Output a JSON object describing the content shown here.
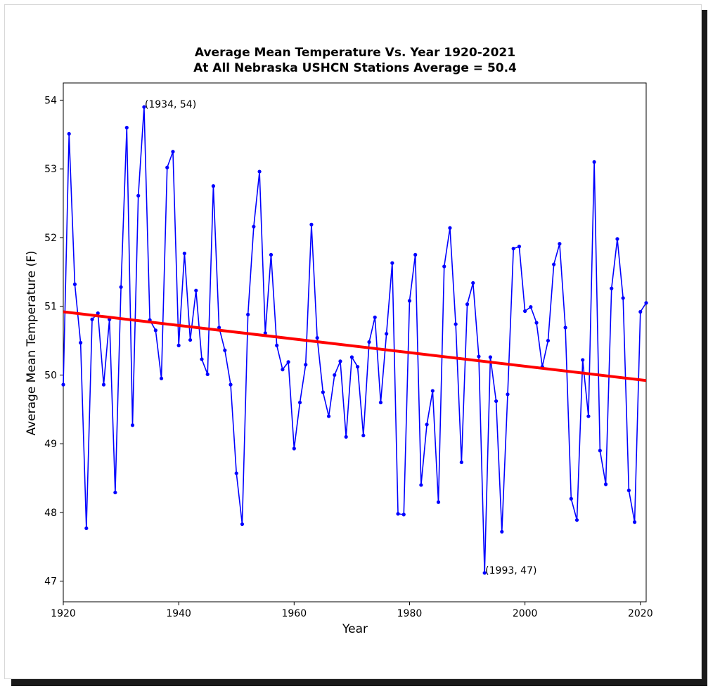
{
  "chart_data": {
    "type": "line",
    "title": "Average Mean Temperature Vs. Year 1920-2021",
    "subtitle": "At All Nebraska USHCN Stations Average = 50.4",
    "xlabel": "Year",
    "ylabel": "Average Mean Temperature (F)",
    "xlim": [
      1920,
      2021
    ],
    "ylim": [
      46.7,
      54.25
    ],
    "xticks": [
      "1920",
      "1940",
      "1960",
      "1980",
      "2000",
      "2020"
    ],
    "yticks": [
      "47",
      "48",
      "49",
      "50",
      "51",
      "52",
      "53",
      "54"
    ],
    "grid": false,
    "colors": {
      "series": "#0000ff",
      "trend": "#ff0000"
    },
    "series": [
      {
        "x": [
          1920,
          1921,
          1922,
          1923,
          1924,
          1925,
          1926,
          1927,
          1928,
          1929,
          1930,
          1931,
          1932,
          1933,
          1934,
          1935,
          1936,
          1937,
          1938,
          1939,
          1940,
          1941,
          1942,
          1943,
          1944,
          1945,
          1946,
          1947,
          1948,
          1949,
          1950,
          1951,
          1952,
          1953,
          1954,
          1955,
          1956,
          1957,
          1958,
          1959,
          1960,
          1961,
          1962,
          1963,
          1964,
          1965,
          1966,
          1967,
          1968,
          1969,
          1970,
          1971,
          1972,
          1973,
          1974,
          1975,
          1976,
          1977,
          1978,
          1979,
          1980,
          1981,
          1982,
          1983,
          1984,
          1985,
          1986,
          1987,
          1988,
          1989,
          1990,
          1991,
          1992,
          1993,
          1994,
          1995,
          1996,
          1997,
          1998,
          1999,
          2000,
          2001,
          2002,
          2003,
          2004,
          2005,
          2006,
          2007,
          2008,
          2009,
          2010,
          2011,
          2012,
          2013,
          2014,
          2015,
          2016,
          2017,
          2018,
          2019,
          2020,
          2021
        ],
        "values": [
          49.86,
          53.51,
          51.32,
          50.47,
          47.77,
          50.81,
          50.9,
          49.86,
          50.81,
          48.29,
          51.28,
          53.6,
          49.27,
          52.61,
          53.9,
          50.8,
          50.65,
          49.95,
          53.02,
          53.25,
          50.43,
          51.77,
          50.51,
          51.23,
          50.23,
          50.01,
          52.75,
          50.69,
          50.36,
          49.86,
          48.57,
          47.83,
          50.88,
          52.16,
          52.96,
          50.61,
          51.75,
          50.43,
          50.08,
          50.19,
          48.93,
          49.6,
          50.15,
          52.19,
          50.54,
          49.75,
          49.4,
          50.0,
          50.2,
          49.1,
          50.26,
          50.12,
          49.12,
          50.48,
          50.84,
          49.6,
          50.6,
          51.63,
          47.98,
          47.97,
          51.08,
          51.75,
          48.4,
          49.28,
          49.77,
          48.15,
          51.58,
          52.14,
          50.74,
          48.73,
          51.03,
          51.34,
          50.27,
          47.12,
          50.26,
          49.62,
          47.72,
          49.72,
          51.84,
          51.87,
          50.93,
          50.99,
          50.76,
          50.12,
          50.5,
          51.61,
          51.91,
          50.69,
          48.2,
          47.89,
          50.22,
          49.4,
          53.1,
          48.9,
          48.41,
          51.26,
          51.98,
          51.12,
          48.32,
          47.86,
          50.92,
          51.05
        ]
      }
    ],
    "trend": {
      "x": [
        1920,
        2021
      ],
      "values": [
        50.92,
        49.92
      ]
    },
    "annotations": [
      {
        "text": "(1934, 54)",
        "x": 1934,
        "y": 53.9
      },
      {
        "text": "(1993, 47)",
        "x": 1993,
        "y": 47.12
      }
    ]
  }
}
